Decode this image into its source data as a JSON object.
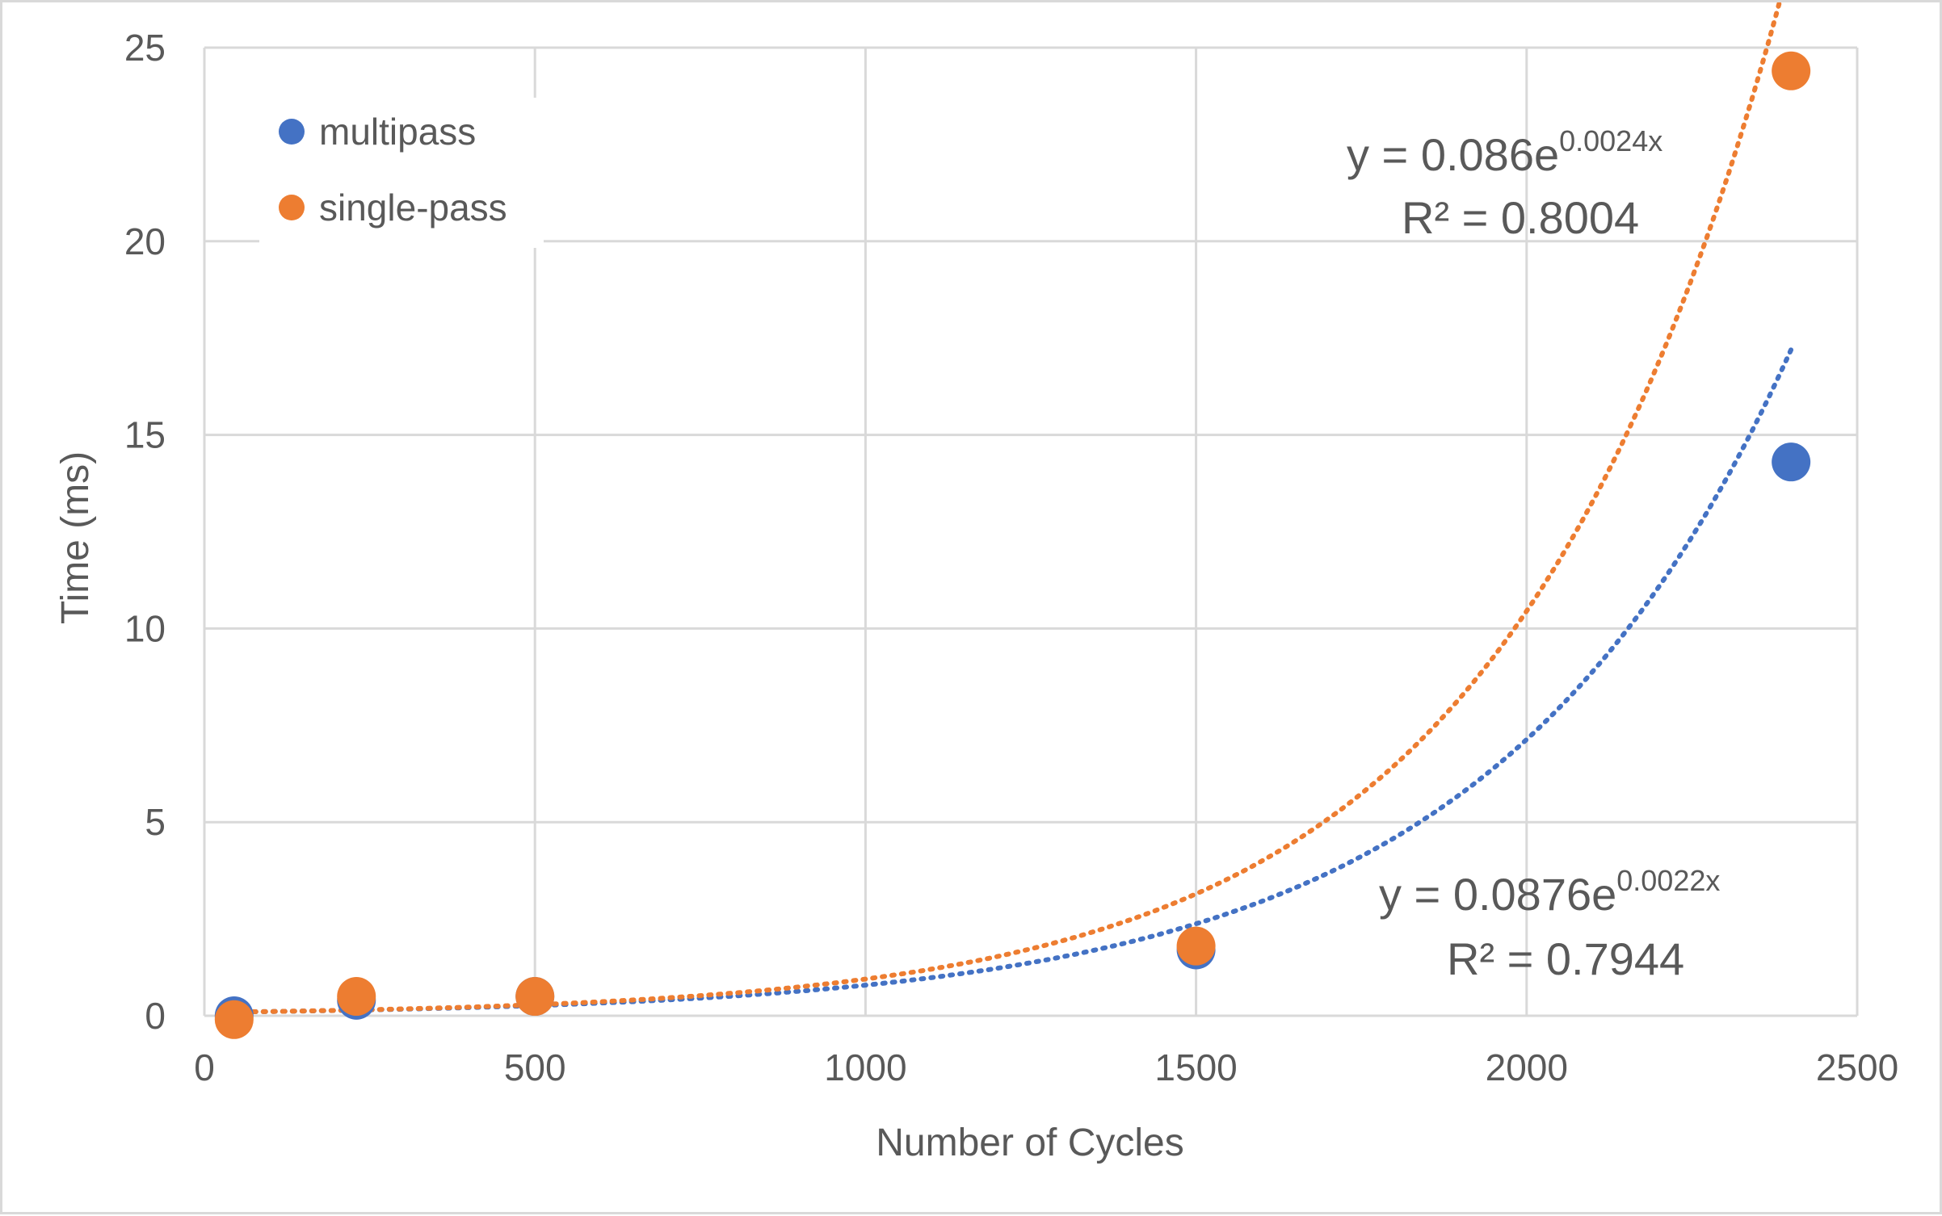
{
  "chart_data": {
    "type": "scatter",
    "title": "",
    "xlabel": "Number of Cycles",
    "ylabel": "Time (ms)",
    "xlim": [
      0,
      2500
    ],
    "ylim": [
      0,
      25
    ],
    "x_ticks": [
      "0",
      "500",
      "1000",
      "1500",
      "2000",
      "2500"
    ],
    "y_ticks": [
      "0",
      "5",
      "10",
      "15",
      "20",
      "25"
    ],
    "grid": true,
    "legend_position": "top-left",
    "series": [
      {
        "name": "multipass",
        "color": "#4472C4",
        "points": [
          {
            "x": 45,
            "y": 0.0
          },
          {
            "x": 230,
            "y": 0.4
          },
          {
            "x": 500,
            "y": 0.5
          },
          {
            "x": 1500,
            "y": 1.7
          },
          {
            "x": 2400,
            "y": 14.3
          }
        ],
        "trendline": {
          "type": "exponential",
          "a": 0.0876,
          "b": 0.0022,
          "equation_main": "y = 0.0876e",
          "equation_exp": "0.0022x",
          "r2_label": "R² = 0.7944"
        }
      },
      {
        "name": "single-pass",
        "color": "#ED7D31",
        "points": [
          {
            "x": 45,
            "y": -0.1
          },
          {
            "x": 230,
            "y": 0.5
          },
          {
            "x": 500,
            "y": 0.5
          },
          {
            "x": 1500,
            "y": 1.8
          },
          {
            "x": 2400,
            "y": 24.4
          }
        ],
        "trendline": {
          "type": "exponential",
          "a": 0.086,
          "b": 0.0024,
          "equation_main": "y = 0.086e",
          "equation_exp": "0.0024x",
          "r2_label": "R² = 0.8004"
        }
      }
    ]
  }
}
